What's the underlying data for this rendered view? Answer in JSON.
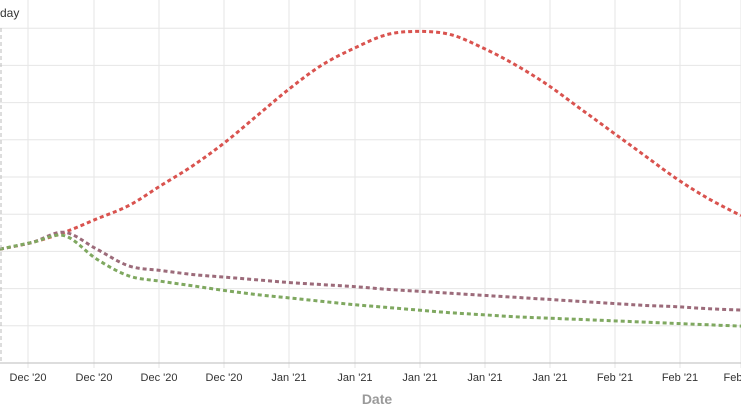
{
  "chart_data": {
    "type": "line",
    "title": "",
    "ylabel_fragment": "day",
    "xlabel": "Date",
    "x_tick_labels": [
      "Dec '20",
      "Dec '20",
      "Dec '20",
      "Dec '20",
      "Jan '21",
      "Jan '21",
      "Jan '21",
      "Jan '21",
      "Jan '21",
      "Feb '21",
      "Feb '21",
      "Feb"
    ],
    "x": [
      0,
      0.5,
      1,
      1.5,
      2,
      2.5,
      3,
      3.5,
      4,
      4.5,
      5,
      5.5,
      6,
      6.5,
      7,
      7.5,
      8,
      8.5,
      9,
      9.5,
      10,
      10.5,
      11,
      11.5
    ],
    "grid": true,
    "series": [
      {
        "color": "#d9534f",
        "values": [
          3.1,
          3.2,
          3.35,
          3.55,
          3.75,
          4.05,
          4.35,
          4.7,
          5.1,
          5.5,
          5.85,
          6.1,
          6.3,
          6.35,
          6.3,
          6.1,
          5.85,
          5.55,
          5.2,
          4.85,
          4.5,
          4.15,
          3.85,
          3.6
        ]
      },
      {
        "color": "#9c6b7a",
        "values": [
          3.1,
          3.2,
          3.35,
          3.1,
          2.85,
          2.78,
          2.72,
          2.68,
          2.64,
          2.6,
          2.57,
          2.54,
          2.5,
          2.47,
          2.44,
          2.41,
          2.38,
          2.35,
          2.32,
          2.29,
          2.26,
          2.24,
          2.21,
          2.19
        ]
      },
      {
        "color": "#7fa860",
        "values": [
          3.1,
          3.2,
          3.3,
          2.95,
          2.7,
          2.62,
          2.55,
          2.48,
          2.42,
          2.37,
          2.32,
          2.27,
          2.23,
          2.19,
          2.15,
          2.12,
          2.09,
          2.07,
          2.05,
          2.03,
          2.01,
          1.99,
          1.97,
          1.95
        ]
      }
    ],
    "xlim": [
      0,
      11.5
    ],
    "ylim": [
      1.4,
      6.4
    ]
  }
}
